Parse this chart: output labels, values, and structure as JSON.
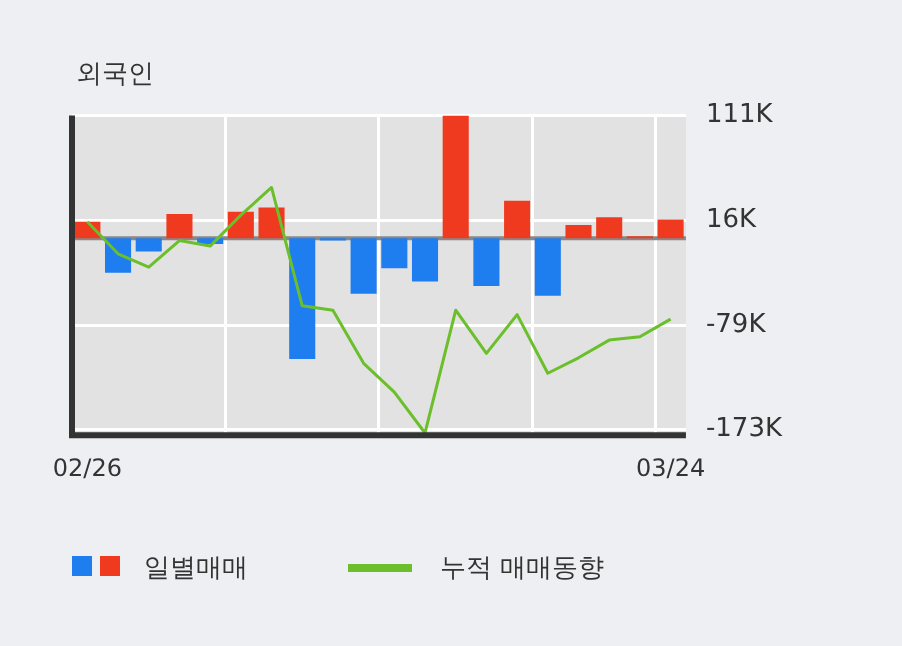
{
  "chart_data": {
    "type": "bar",
    "title": "외국인",
    "categories": [
      "02/26",
      null,
      null,
      null,
      null,
      null,
      null,
      null,
      null,
      null,
      null,
      null,
      null,
      null,
      null,
      null,
      null,
      null,
      null,
      "03/24"
    ],
    "series": [
      {
        "name": "일별매매",
        "colors": [
          "#f03a1f",
          "#1e7ef0",
          "#1e7ef0",
          "#f03a1f",
          "#1e7ef0",
          "#f03a1f",
          "#f03a1f",
          "#1e7ef0",
          "#1e7ef0",
          "#1e7ef0",
          "#1e7ef0",
          "#1e7ef0",
          "#f03a1f",
          "#1e7ef0",
          "#f03a1f",
          "#1e7ef0",
          "#f03a1f",
          "#f03a1f",
          "#f03a1f",
          "#f03a1f"
        ],
        "values": [
          15,
          -31,
          -12,
          22,
          -5,
          24,
          28,
          -109,
          -2,
          -50,
          -27,
          -39,
          111,
          -43,
          34,
          -52,
          12,
          19,
          2,
          17
        ]
      },
      {
        "name": "누적 매매동향",
        "type": "line",
        "color": "#6abf2a",
        "values": [
          15,
          -14,
          -26,
          -2,
          -7,
          21,
          46,
          -61,
          -65,
          -113,
          -139,
          -176,
          -65,
          -104,
          -69,
          -122,
          -108,
          -92,
          -89,
          -73
        ]
      }
    ],
    "ylim": [
      -178,
      111
    ],
    "yticks": [
      {
        "value": 111,
        "label": "111K"
      },
      {
        "value": 16,
        "label": "16K"
      },
      {
        "value": -79,
        "label": "-79K"
      },
      {
        "value": -173,
        "label": "-173K"
      }
    ],
    "ref_lines": [
      {
        "axis": "y",
        "value": 0,
        "color": "#888888"
      }
    ],
    "grid": true,
    "legend": "bottom",
    "marker": "none"
  }
}
